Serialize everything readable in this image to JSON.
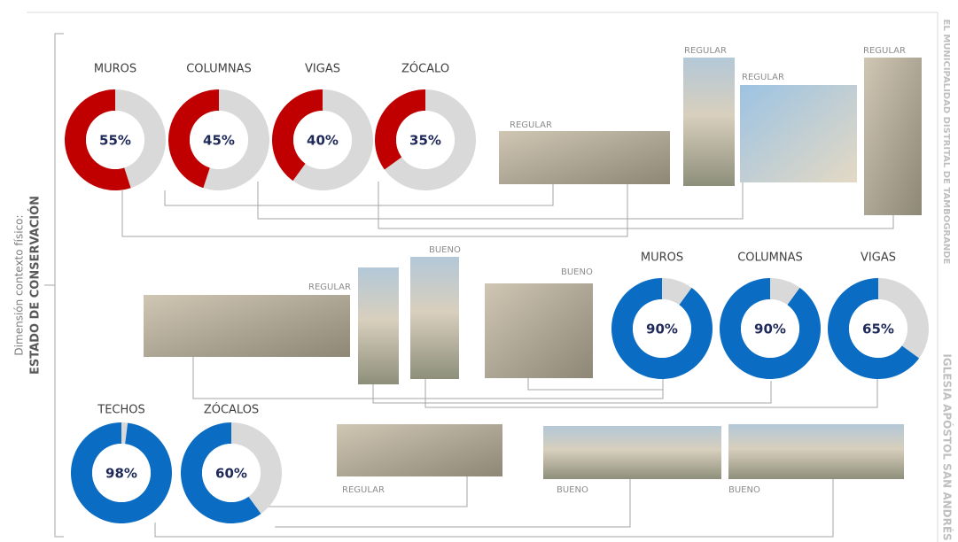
{
  "side_title": {
    "subtitle": "Dimensión contexto físico:",
    "title": "ESTADO DE CONSERVACIÓN"
  },
  "buildings": [
    "EL MUNICIPALIDAD DISTRITAL DE TAMBOGRANDE",
    "IGLESIA APÓSTOL SAN ANDRÉS"
  ],
  "groups": [
    {
      "color": "#c00000",
      "items": [
        {
          "label": "MUROS",
          "value": 55,
          "value_label": "55%"
        },
        {
          "label": "COLUMNAS",
          "value": 45,
          "value_label": "45%"
        },
        {
          "label": "VIGAS",
          "value": 40,
          "value_label": "40%"
        },
        {
          "label": "ZÓCALO",
          "value": 35,
          "value_label": "35%"
        }
      ]
    },
    {
      "color": "#0a6cc2",
      "items": [
        {
          "label": "MUROS",
          "value": 90,
          "value_label": "90%"
        },
        {
          "label": "COLUMNAS",
          "value": 90,
          "value_label": "90%"
        },
        {
          "label": "VIGAS",
          "value": 65,
          "value_label": "65%"
        }
      ]
    },
    {
      "color": "#0a6cc2",
      "items": [
        {
          "label": "TECHOS",
          "value": 98,
          "value_label": "98%"
        },
        {
          "label": "ZÓCALOS",
          "value": 60,
          "value_label": "60%"
        }
      ]
    }
  ],
  "photos": [
    {
      "label": "REGULAR"
    },
    {
      "label": "REGULAR"
    },
    {
      "label": "REGULAR"
    },
    {
      "label": "REGULAR"
    },
    {
      "label": "REGULAR"
    },
    {
      "label": "BUENO"
    },
    {
      "label": "BUENO"
    },
    {
      "label": "REGULAR"
    },
    {
      "label": "BUENO"
    },
    {
      "label": "BUENO"
    }
  ]
}
